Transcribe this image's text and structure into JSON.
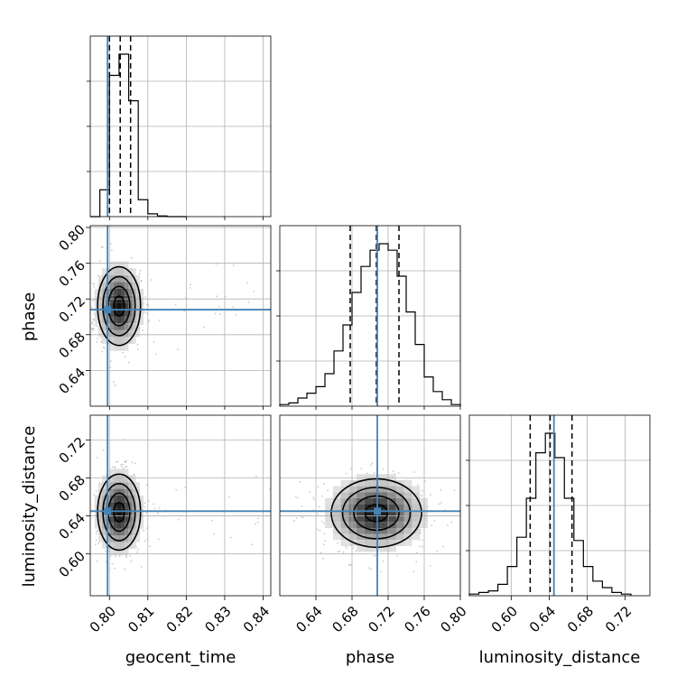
{
  "chart_data": {
    "type": "corner",
    "parameters": [
      "geocent_time",
      "phase",
      "luminosity_distance"
    ],
    "truths": {
      "geocent_time": 0.7995,
      "phase": 0.708,
      "luminosity_distance": 0.645
    },
    "truth_color": "#4682b4",
    "grid": true,
    "panels": [
      {
        "kind": "hist1d",
        "param": "geocent_time",
        "xlim": [
          0.795,
          0.842
        ],
        "bin_edges": [
          0.795,
          0.7975,
          0.8,
          0.8025,
          0.805,
          0.8075,
          0.81,
          0.8125,
          0.815,
          0.8175,
          0.82
        ],
        "counts": [
          0.0,
          0.19,
          1.0,
          1.15,
          0.82,
          0.12,
          0.02,
          0.005,
          0.0,
          0.0
        ],
        "quantiles": [
          0.8,
          0.8028,
          0.8055
        ]
      },
      {
        "kind": "hist1d",
        "param": "phase",
        "xlim": [
          0.6,
          0.8
        ],
        "bin_edges": [
          0.6,
          0.61,
          0.62,
          0.63,
          0.64,
          0.65,
          0.66,
          0.67,
          0.68,
          0.69,
          0.7,
          0.71,
          0.72,
          0.73,
          0.74,
          0.75,
          0.76,
          0.77,
          0.78,
          0.79,
          0.8
        ],
        "counts": [
          0.01,
          0.02,
          0.05,
          0.08,
          0.12,
          0.2,
          0.34,
          0.5,
          0.7,
          0.86,
          0.96,
          1.0,
          0.96,
          0.8,
          0.58,
          0.38,
          0.18,
          0.09,
          0.04,
          0.01
        ],
        "quantiles": [
          0.678,
          0.707,
          0.732
        ]
      },
      {
        "kind": "hist1d",
        "param": "luminosity_distance",
        "xlim": [
          0.556,
          0.746
        ],
        "bin_edges": [
          0.556,
          0.566,
          0.576,
          0.586,
          0.596,
          0.606,
          0.616,
          0.626,
          0.636,
          0.646,
          0.656,
          0.666,
          0.676,
          0.686,
          0.696,
          0.706,
          0.716,
          0.726
        ],
        "counts": [
          0.01,
          0.02,
          0.03,
          0.07,
          0.18,
          0.36,
          0.6,
          0.88,
          1.0,
          0.85,
          0.6,
          0.34,
          0.18,
          0.09,
          0.05,
          0.02,
          0.01
        ],
        "quantiles": [
          0.62,
          0.641,
          0.664
        ]
      },
      {
        "kind": "hist2d",
        "x": "geocent_time",
        "y": "phase",
        "xlim": [
          0.795,
          0.842
        ],
        "ylim": [
          0.6,
          0.802
        ],
        "mean": [
          0.8025,
          0.712
        ],
        "sd": [
          0.0028,
          0.022
        ]
      },
      {
        "kind": "hist2d",
        "x": "geocent_time",
        "y": "luminosity_distance",
        "xlim": [
          0.795,
          0.842
        ],
        "ylim": [
          0.556,
          0.746
        ],
        "mean": [
          0.8025,
          0.644
        ],
        "sd": [
          0.0028,
          0.02
        ]
      },
      {
        "kind": "hist2d",
        "x": "phase",
        "y": "luminosity_distance",
        "xlim": [
          0.6,
          0.8
        ],
        "ylim": [
          0.556,
          0.746
        ],
        "mean": [
          0.707,
          0.643
        ],
        "sd": [
          0.025,
          0.018
        ]
      }
    ],
    "ticks": {
      "geocent_time": {
        "values": [
          0.8,
          0.81,
          0.82,
          0.83,
          0.84
        ],
        "labels": [
          "0.80",
          "0.81",
          "0.82",
          "0.83",
          "0.84"
        ]
      },
      "phase_x": {
        "values": [
          0.64,
          0.68,
          0.72,
          0.76,
          0.8
        ],
        "labels": [
          "0.64",
          "0.68",
          "0.72",
          "0.76",
          "0.80"
        ]
      },
      "phase_y": {
        "values": [
          0.64,
          0.68,
          0.72,
          0.76,
          0.8
        ],
        "labels": [
          "0.64",
          "0.68",
          "0.72",
          "0.76",
          "0.80"
        ]
      },
      "luminosity_distance": {
        "values": [
          0.6,
          0.64,
          0.68,
          0.72
        ],
        "labels": [
          "0.60",
          "0.64",
          "0.68",
          "0.72"
        ]
      }
    }
  }
}
